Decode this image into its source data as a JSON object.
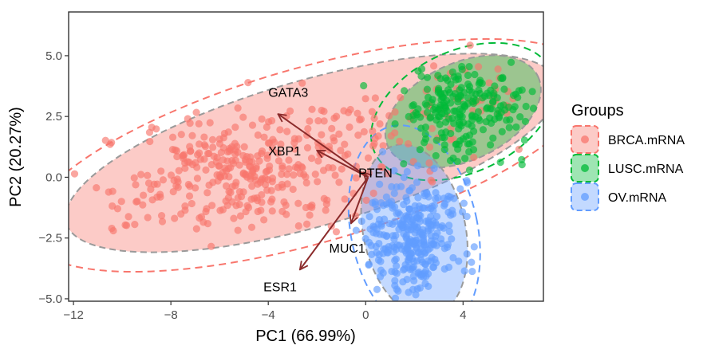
{
  "chart_data": {
    "type": "scatter",
    "title": "",
    "xlabel": "PC1 (66.99%)",
    "ylabel": "PC2 (20.27%)",
    "xlim": [
      -12.2,
      7.3
    ],
    "ylim": [
      -5.1,
      6.8
    ],
    "x_ticks": [
      -12,
      -8,
      -4,
      0,
      4
    ],
    "x_tick_labels": [
      "−12",
      "−8",
      "−4",
      "0",
      "4"
    ],
    "y_ticks": [
      -5,
      -2.5,
      0,
      2.5,
      5
    ],
    "y_tick_labels": [
      "−5.0",
      "−2.5",
      "0.0",
      "2.5",
      "5.0"
    ],
    "grid": false,
    "legend": {
      "title": "Groups",
      "position": "right",
      "items": [
        "BRCA.mRNA",
        "LUSC.mRNA",
        "OV.mRNA"
      ]
    },
    "series": [
      {
        "name": "BRCA.mRNA",
        "color": "#F8766D",
        "centroid": [
          -4.8,
          0.3
        ],
        "point_cloud_std": [
          2.2,
          1.2
        ],
        "n_points": 430,
        "confidence_ellipse": {
          "cx": -2.2,
          "cy": 1.0,
          "rx": 10.5,
          "ry": 3.0,
          "angle_deg": 16
        },
        "outer_ellipse": {
          "cx": -2.3,
          "cy": 0.9,
          "rx": 12.0,
          "ry": 3.6,
          "angle_deg": 16
        }
      },
      {
        "name": "LUSC.mRNA",
        "color": "#00BA38",
        "centroid": [
          4.0,
          2.7
        ],
        "point_cloud_std": [
          1.3,
          0.9
        ],
        "n_points": 220,
        "confidence_ellipse": {
          "cx": 4.0,
          "cy": 2.7,
          "rx": 3.4,
          "ry": 2.0,
          "angle_deg": 25
        },
        "outer_ellipse": {
          "cx": 4.0,
          "cy": 2.7,
          "rx": 4.0,
          "ry": 2.5,
          "angle_deg": 25
        }
      },
      {
        "name": "OV.mRNA",
        "color": "#619CFF",
        "centroid": [
          1.9,
          -2.4
        ],
        "point_cloud_std": [
          0.9,
          1.1
        ],
        "n_points": 320,
        "confidence_ellipse": {
          "cx": 2.0,
          "cy": -2.2,
          "rx": 2.1,
          "ry": 3.6,
          "angle_deg": 12
        },
        "outer_ellipse": {
          "cx": 2.0,
          "cy": -2.2,
          "rx": 2.6,
          "ry": 4.4,
          "angle_deg": 12
        }
      }
    ],
    "loadings": [
      {
        "label": "GATA3",
        "x": -3.6,
        "y": 2.6,
        "label_pos": [
          -4.0,
          3.5
        ]
      },
      {
        "label": "XBP1",
        "x": -2.0,
        "y": 1.1,
        "label_pos": [
          -4.0,
          1.1
        ]
      },
      {
        "label": "PTEN",
        "x": -0.1,
        "y": 0.2,
        "label_pos": [
          -0.3,
          0.2
        ]
      },
      {
        "label": "MUC1",
        "x": -0.6,
        "y": -1.9,
        "label_pos": [
          -1.5,
          -2.9
        ]
      },
      {
        "label": "ESR1",
        "x": -2.7,
        "y": -3.8,
        "label_pos": [
          -4.2,
          -4.5
        ]
      }
    ],
    "loading_origin": [
      0.1,
      0.0
    ],
    "loading_color": "#8B2B2B"
  }
}
